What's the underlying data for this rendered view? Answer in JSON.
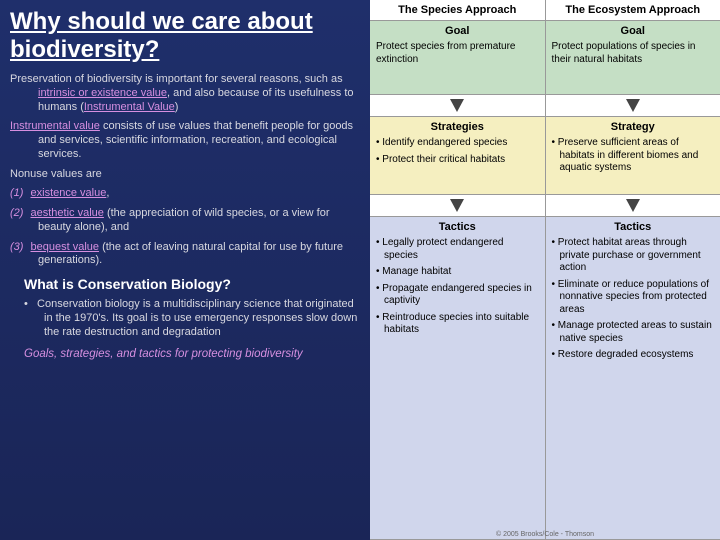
{
  "title": "Why should we care about biodiversity?",
  "para1": {
    "pre": "Preservation of biodiversity is important for several reasons, such as ",
    "term1": "intrinsic or existence value",
    "mid": ", and also because of its usefulness to humans (",
    "term2": "Instrumental Value",
    "post": ")"
  },
  "para2": {
    "term": "Instrumental value",
    "post": " consists of use values that benefit people for goods and services, scientific information, recreation, and ecological services."
  },
  "para3": "Nonuse values are",
  "nv": [
    {
      "n": "(1)",
      "term": "existence value",
      "rest": ","
    },
    {
      "n": "(2)",
      "term": "aesthetic value",
      "rest": " (the appreciation of wild species, or a view for beauty alone), and"
    },
    {
      "n": "(3)",
      "term": "bequest value",
      "rest": " (the act of leaving natural capital for use by future generations)."
    }
  ],
  "subhead": "What is Conservation Biology?",
  "bullet": "Conservation biology is a multidisciplinary science that originated in the 1970's. Its goal is to use emergency responses slow down the rate destruction and degradation",
  "footer": "Goals, strategies, and tactics for protecting biodiversity",
  "right": {
    "cols": [
      {
        "header": "The Species Approach",
        "goal_title": "Goal",
        "goal_body": "Protect species from premature extinction",
        "strat_title": "Strategies",
        "strat_items": [
          "Identify endangered species",
          "Protect their critical habitats"
        ],
        "tactics_title": "Tactics",
        "tactics_items": [
          "Legally protect endangered species",
          "Manage habitat",
          "Propagate endangered species in captivity",
          "Reintroduce species into suitable habitats"
        ]
      },
      {
        "header": "The Ecosystem Approach",
        "goal_title": "Goal",
        "goal_body": "Protect populations of species in their natural habitats",
        "strat_title": "Strategy",
        "strat_items": [
          "Preserve sufficient areas of habitats in different biomes and aquatic systems"
        ],
        "tactics_title": "Tactics",
        "tactics_items": [
          "Protect habitat areas through private purchase or government action",
          "Eliminate or reduce populations of nonnative species from protected areas",
          "Manage protected areas to sustain native species",
          "Restore degraded ecosystems"
        ]
      }
    ],
    "copyright": "© 2005 Brooks/Cole - Thomson"
  }
}
